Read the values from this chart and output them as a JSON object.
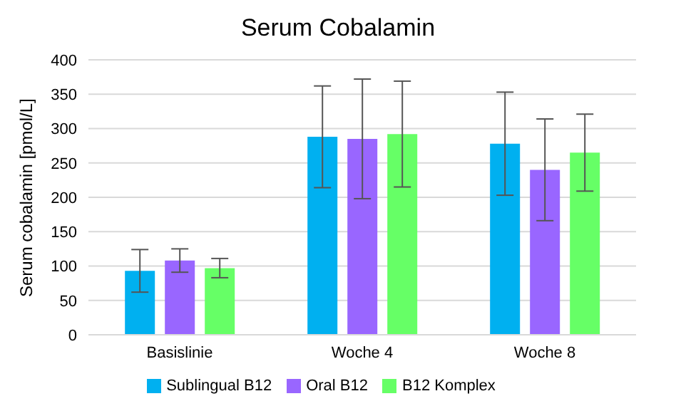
{
  "chart_data": {
    "type": "bar",
    "title": "Serum Cobalamin",
    "ylabel": "Serum cobalamin [pmol/L]",
    "categories": [
      "Basislinie",
      "Woche 4",
      "Woche 8"
    ],
    "series": [
      {
        "name": "Sublingual B12",
        "color": "#00b0f0",
        "values": [
          93,
          288,
          278
        ],
        "errors": [
          31,
          74,
          75
        ]
      },
      {
        "name": "Oral B12",
        "color": "#9966ff",
        "values": [
          108,
          285,
          240
        ],
        "errors": [
          17,
          87,
          74
        ]
      },
      {
        "name": "B12 Komplex",
        "color": "#66ff66",
        "values": [
          97,
          292,
          265
        ],
        "errors": [
          14,
          77,
          56
        ]
      }
    ],
    "ylim": [
      0,
      400
    ],
    "yticks": [
      0,
      50,
      100,
      150,
      200,
      250,
      300,
      350,
      400
    ],
    "grid": "y",
    "legend": "bottom"
  }
}
